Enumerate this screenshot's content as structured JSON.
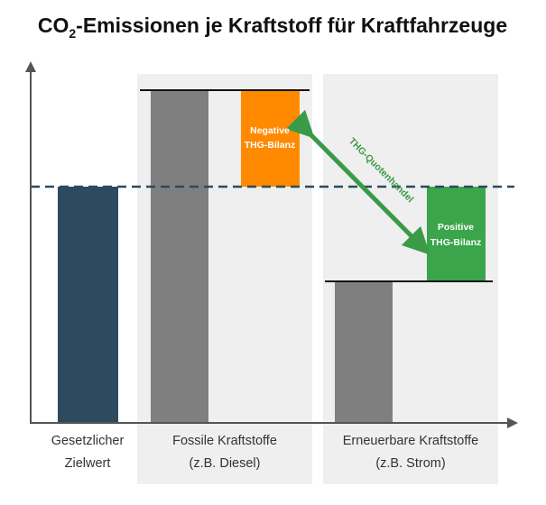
{
  "title": {
    "prefix": "CO",
    "subscript": "2",
    "suffix": "-Emissionen je Kraftstoff für Kraftfahrzeuge"
  },
  "categories": [
    {
      "line1": "Gesetzlicher",
      "line2": "Zielwert"
    },
    {
      "line1": "Fossile Kraftstoffe",
      "line2": "(z.B. Diesel)"
    },
    {
      "line1": "Erneuerbare Kraftstoffe",
      "line2": "(z.B. Strom)"
    }
  ],
  "balances": {
    "negative": {
      "line1": "Negative",
      "line2": "THG-Bilanz"
    },
    "positive": {
      "line1": "Positive",
      "line2": "THG-Bilanz"
    }
  },
  "arrow_label": "THG-Quotenhandel",
  "colors": {
    "target_bar": "#2d4a5e",
    "emission_bar": "#7f7f7f",
    "negative_balance": "#ff8a00",
    "positive_balance": "#3aa54a",
    "panel_background": "#efefef",
    "arrow": "#3a9a48"
  }
}
